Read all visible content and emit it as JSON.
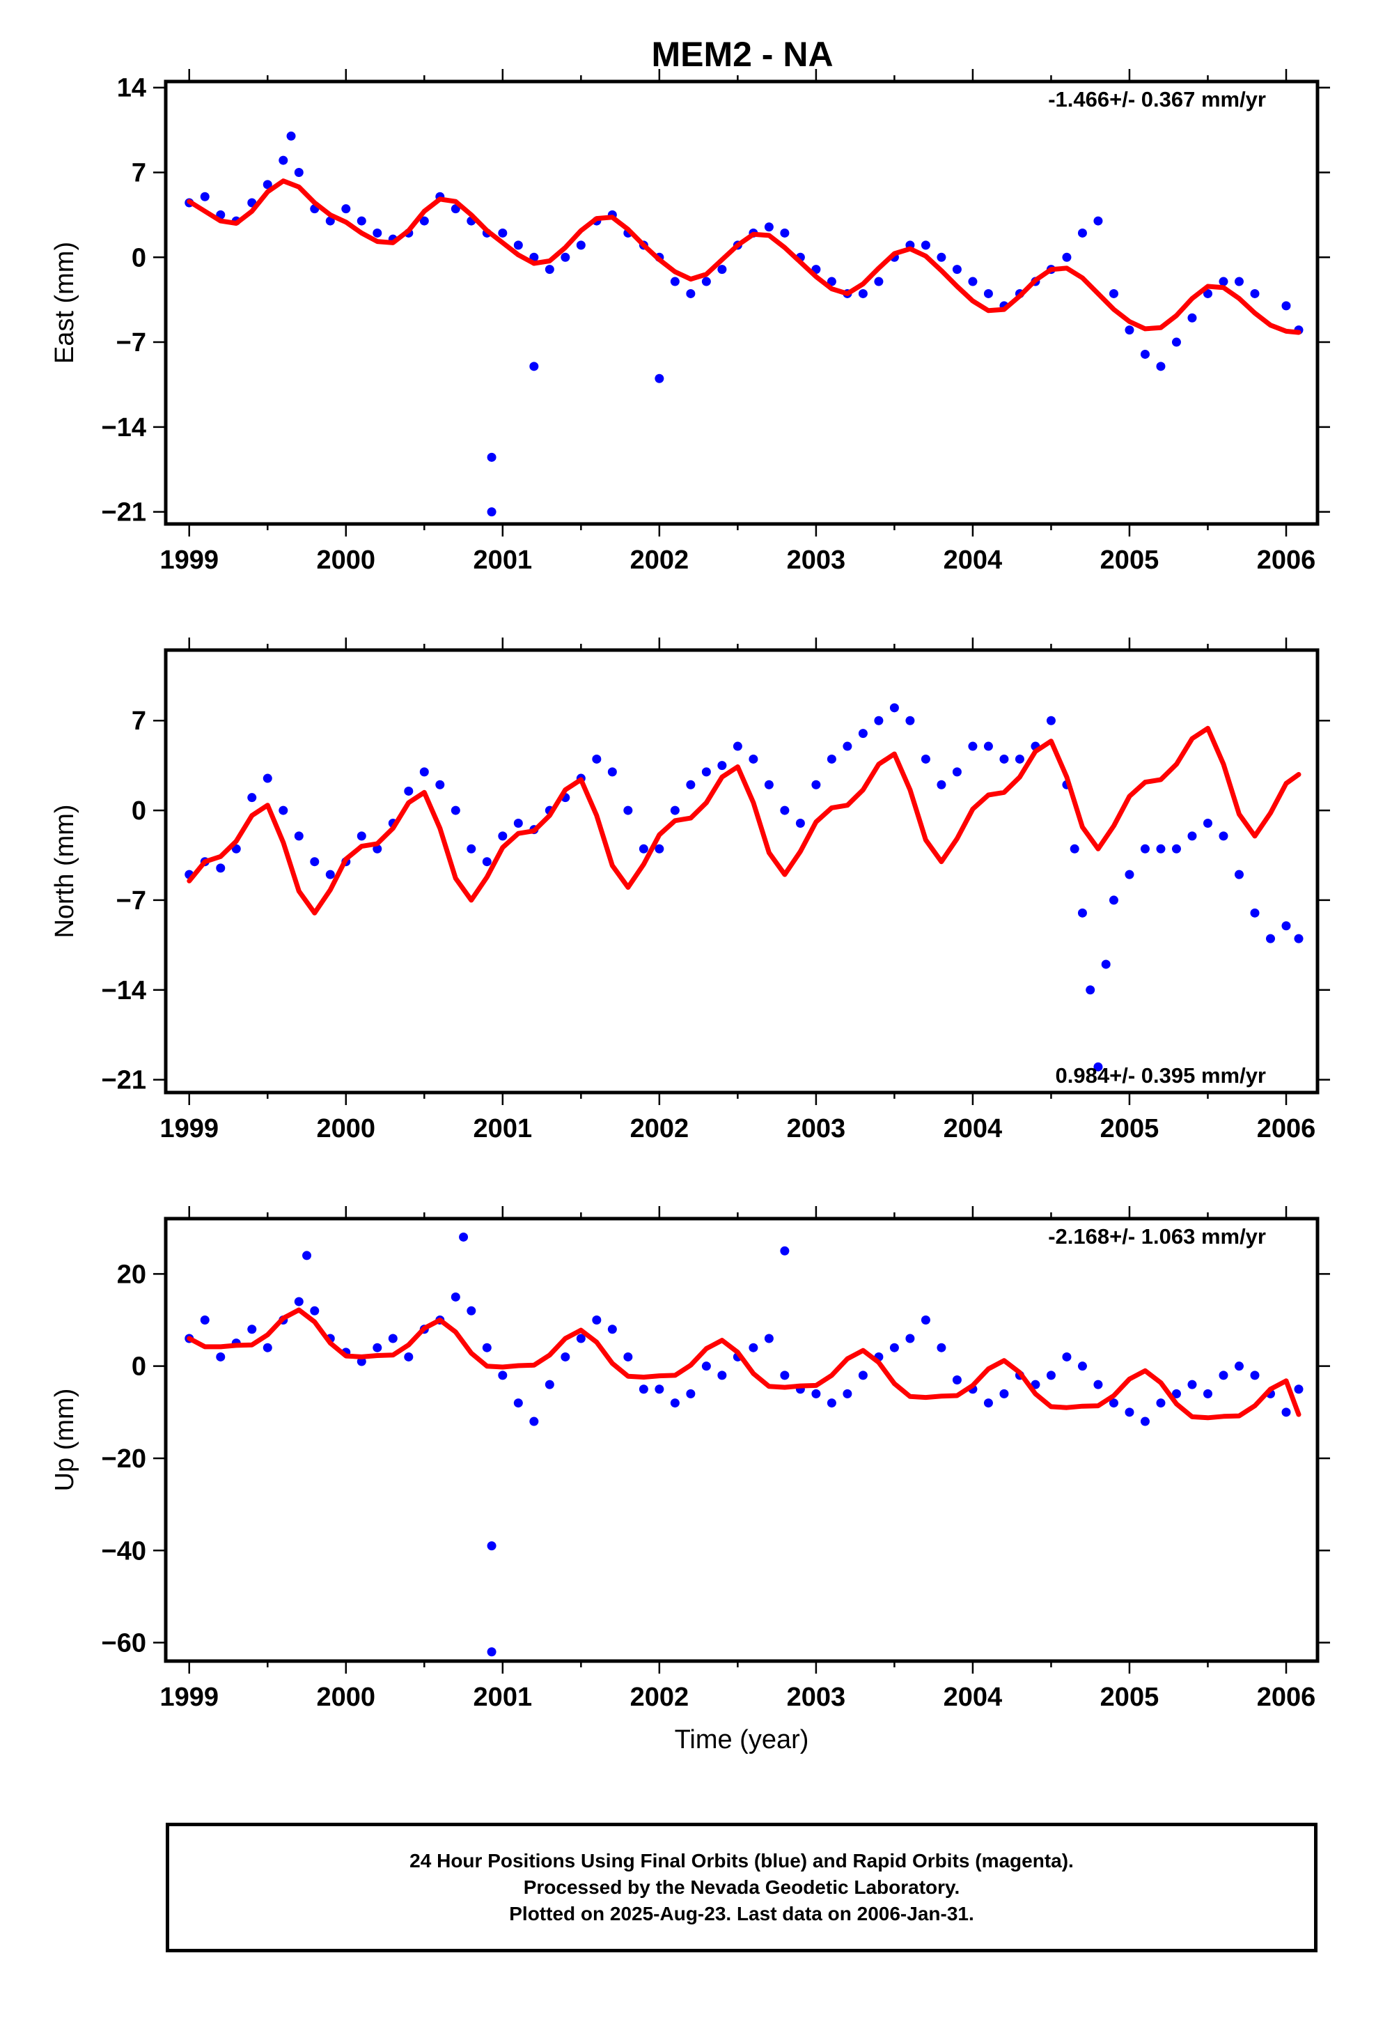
{
  "title": "MEM2 - NA",
  "colors": {
    "data_points": "#0000ff",
    "model_curve": "#ff0000",
    "axes": "#000000"
  },
  "chart_data": [
    {
      "type": "scatter",
      "panel": "east",
      "ylabel": "East (mm)",
      "xlabel": "",
      "xlim": [
        1998.85,
        2006.2
      ],
      "ylim": [
        -22,
        14.5
      ],
      "xticks": [
        1999,
        2000,
        2001,
        2002,
        2003,
        2004,
        2005,
        2006
      ],
      "xtick_labels": [
        "1999",
        "2000",
        "2001",
        "2002",
        "2003",
        "2004",
        "2005",
        "2006"
      ],
      "yticks": [
        14,
        7,
        0,
        -7,
        -14,
        -21
      ],
      "ytick_labels": [
        "14",
        "7",
        "0",
        "−7",
        "−14",
        "−21"
      ],
      "rate_label": "-1.466+/- 0.367 mm/yr",
      "rate_label_position": "top-right",
      "series": [
        {
          "kind": "points",
          "x": [
            1999.0,
            1999.1,
            1999.2,
            1999.3,
            1999.4,
            1999.5,
            1999.6,
            1999.65,
            1999.7,
            1999.8,
            1999.9,
            2000.0,
            2000.1,
            2000.2,
            2000.3,
            2000.4,
            2000.5,
            2000.6,
            2000.7,
            2000.8,
            2000.9,
            2001.0,
            2001.1,
            2001.2,
            2001.3,
            2001.4,
            2001.5,
            2001.6,
            2001.7,
            2001.8,
            2001.9,
            2002.0,
            2002.1,
            2002.2,
            2002.3,
            2002.4,
            2002.5,
            2002.6,
            2002.7,
            2002.8,
            2002.9,
            2003.0,
            2003.1,
            2003.2,
            2003.3,
            2003.4,
            2003.5,
            2003.6,
            2003.7,
            2003.8,
            2003.9,
            2004.0,
            2004.1,
            2004.2,
            2004.3,
            2004.4,
            2004.5,
            2004.6,
            2004.7,
            2004.8,
            2004.9,
            2005.0,
            2005.1,
            2005.2,
            2005.3,
            2005.4,
            2005.5,
            2005.6,
            2005.7,
            2005.8,
            2006.0,
            2006.08,
            2000.93,
            2000.93,
            2001.2,
            2002.0
          ],
          "y": [
            4.5,
            5,
            3.5,
            3,
            4.5,
            6,
            8,
            10,
            7,
            4,
            3,
            4,
            3,
            2,
            1.5,
            2,
            3,
            5,
            4,
            3,
            2,
            2,
            1,
            0,
            -1,
            0,
            1,
            3,
            3.5,
            2,
            1,
            0,
            -2,
            -3,
            -2,
            -1,
            1,
            2,
            2.5,
            2,
            0,
            -1,
            -2,
            -3,
            -3,
            -2,
            0,
            1,
            1,
            0,
            -1,
            -2,
            -3,
            -4,
            -3,
            -2,
            -1,
            0,
            2,
            3,
            -3,
            -6,
            -8,
            -9,
            -7,
            -5,
            -3,
            -2,
            -2,
            -3,
            -4,
            -6,
            -16.5,
            -21,
            -9,
            -10
          ]
        },
        {
          "kind": "model",
          "x": [
            1999.0,
            1999.1,
            1999.2,
            1999.3,
            1999.4,
            1999.5,
            1999.6,
            1999.7,
            1999.8,
            1999.9,
            2000.0,
            2000.1,
            2000.2,
            2000.3,
            2000.4,
            2000.5,
            2000.6,
            2000.7,
            2000.8,
            2000.9,
            2001.0,
            2001.1,
            2001.2,
            2001.3,
            2001.4,
            2001.5,
            2001.6,
            2001.7,
            2001.8,
            2001.9,
            2002.0,
            2002.1,
            2002.2,
            2002.3,
            2002.4,
            2002.5,
            2002.6,
            2002.7,
            2002.8,
            2002.9,
            2003.0,
            2003.1,
            2003.2,
            2003.3,
            2003.4,
            2003.5,
            2003.6,
            2003.7,
            2003.8,
            2003.9,
            2004.0,
            2004.1,
            2004.2,
            2004.3,
            2004.4,
            2004.5,
            2004.6,
            2004.7,
            2004.8,
            2004.9,
            2005.0,
            2005.1,
            2005.2,
            2005.3,
            2005.4,
            2005.5,
            2005.6,
            2005.7,
            2005.8,
            2005.9,
            2006.0,
            2006.08
          ],
          "y": [
            4.6,
            3.8,
            3.0,
            2.8,
            3.8,
            5.4,
            6.3,
            5.8,
            4.5,
            3.5,
            2.9,
            2.0,
            1.3,
            1.2,
            2.2,
            3.8,
            4.8,
            4.6,
            3.5,
            2.2,
            1.2,
            0.2,
            -0.5,
            -0.3,
            0.8,
            2.2,
            3.2,
            3.3,
            2.3,
            1.0,
            -0.2,
            -1.2,
            -1.8,
            -1.4,
            -0.2,
            1.0,
            1.9,
            1.8,
            0.8,
            -0.4,
            -1.6,
            -2.6,
            -3.0,
            -2.2,
            -0.9,
            0.3,
            0.7,
            0.1,
            -1.1,
            -2.4,
            -3.6,
            -4.4,
            -4.3,
            -3.2,
            -1.9,
            -1.0,
            -0.9,
            -1.7,
            -3.0,
            -4.3,
            -5.3,
            -5.9,
            -5.8,
            -4.8,
            -3.4,
            -2.4,
            -2.5,
            -3.4,
            -4.6,
            -5.6,
            -6.1,
            -6.2
          ]
        }
      ]
    },
    {
      "type": "scatter",
      "panel": "north",
      "ylabel": "North (mm)",
      "xlabel": "",
      "xlim": [
        1998.85,
        2006.2
      ],
      "ylim": [
        -22,
        12.5
      ],
      "xticks": [
        1999,
        2000,
        2001,
        2002,
        2003,
        2004,
        2005,
        2006
      ],
      "xtick_labels": [
        "1999",
        "2000",
        "2001",
        "2002",
        "2003",
        "2004",
        "2005",
        "2006"
      ],
      "yticks": [
        7,
        0,
        -7,
        -14,
        -21
      ],
      "ytick_labels": [
        "7",
        "0",
        "−7",
        "−14",
        "−21"
      ],
      "rate_label": "0.984+/- 0.395 mm/yr",
      "rate_label_position": "bottom-right",
      "series": [
        {
          "kind": "points",
          "x": [
            1999.0,
            1999.1,
            1999.2,
            1999.3,
            1999.4,
            1999.5,
            1999.6,
            1999.7,
            1999.8,
            1999.9,
            2000.0,
            2000.1,
            2000.2,
            2000.3,
            2000.4,
            2000.5,
            2000.6,
            2000.7,
            2000.8,
            2000.9,
            2001.0,
            2001.1,
            2001.2,
            2001.3,
            2001.4,
            2001.5,
            2001.6,
            2001.7,
            2001.8,
            2001.9,
            2002.0,
            2002.1,
            2002.2,
            2002.3,
            2002.4,
            2002.5,
            2002.6,
            2002.7,
            2002.8,
            2002.9,
            2003.0,
            2003.1,
            2003.2,
            2003.3,
            2003.4,
            2003.5,
            2003.6,
            2003.7,
            2003.8,
            2003.9,
            2004.0,
            2004.1,
            2004.2,
            2004.3,
            2004.4,
            2004.5,
            2004.6,
            2004.65,
            2004.7,
            2004.75,
            2004.8,
            2004.85,
            2004.9,
            2005.0,
            2005.1,
            2005.2,
            2005.3,
            2005.4,
            2005.5,
            2005.6,
            2005.7,
            2005.8,
            2005.9,
            2006.0,
            2006.08
          ],
          "y": [
            -5,
            -4,
            -4.5,
            -3,
            1,
            2.5,
            0,
            -2,
            -4,
            -5,
            -4,
            -2,
            -3,
            -1,
            1.5,
            3,
            2,
            0,
            -3,
            -4,
            -2,
            -1,
            -1.5,
            0,
            1,
            2.5,
            4,
            3,
            0,
            -3,
            -3,
            0,
            2,
            3,
            3.5,
            5,
            4,
            2,
            0,
            -1,
            2,
            4,
            5,
            6,
            7,
            8,
            7,
            4,
            2,
            3,
            5,
            5,
            4,
            4,
            5,
            7,
            2,
            -3,
            -8,
            -14,
            -20,
            -12,
            -7,
            -5,
            -3,
            -3,
            -3,
            -2,
            -1,
            -2,
            -5,
            -8,
            -10,
            -9,
            -10
          ]
        },
        {
          "kind": "model",
          "x": [
            1999.0,
            1999.1,
            1999.2,
            1999.3,
            1999.4,
            1999.5,
            1999.6,
            1999.7,
            1999.8,
            1999.9,
            2000.0,
            2000.1,
            2000.2,
            2000.3,
            2000.4,
            2000.5,
            2000.6,
            2000.7,
            2000.8,
            2000.9,
            2001.0,
            2001.1,
            2001.2,
            2001.3,
            2001.4,
            2001.5,
            2001.6,
            2001.7,
            2001.8,
            2001.9,
            2002.0,
            2002.1,
            2002.2,
            2002.3,
            2002.4,
            2002.5,
            2002.6,
            2002.7,
            2002.8,
            2002.9,
            2003.0,
            2003.1,
            2003.2,
            2003.3,
            2003.4,
            2003.5,
            2003.6,
            2003.7,
            2003.8,
            2003.9,
            2004.0,
            2004.1,
            2004.2,
            2004.3,
            2004.4,
            2004.5,
            2004.6,
            2004.7,
            2004.8,
            2004.9,
            2005.0,
            2005.1,
            2005.2,
            2005.3,
            2005.4,
            2005.5,
            2005.6,
            2005.7,
            2005.8,
            2005.9,
            2006.0,
            2006.08
          ],
          "y": [
            -5.5,
            -4.0,
            -3.6,
            -2.4,
            -0.4,
            0.4,
            -2.5,
            -6.3,
            -8.0,
            -6.2,
            -3.8,
            -2.8,
            -2.6,
            -1.4,
            0.6,
            1.4,
            -1.4,
            -5.3,
            -7.0,
            -5.2,
            -2.9,
            -1.8,
            -1.6,
            -0.4,
            1.6,
            2.4,
            -0.4,
            -4.3,
            -6.0,
            -4.2,
            -1.9,
            -0.8,
            -0.6,
            0.6,
            2.6,
            3.4,
            0.6,
            -3.3,
            -5.0,
            -3.2,
            -0.9,
            0.2,
            0.4,
            1.6,
            3.6,
            4.4,
            1.6,
            -2.3,
            -4.0,
            -2.2,
            0.1,
            1.2,
            1.4,
            2.6,
            4.6,
            5.4,
            2.6,
            -1.3,
            -3.0,
            -1.2,
            1.1,
            2.2,
            2.4,
            3.6,
            5.6,
            6.4,
            3.6,
            -0.3,
            -2.0,
            -0.2,
            2.1,
            2.8
          ]
        }
      ]
    },
    {
      "type": "scatter",
      "panel": "up",
      "ylabel": "Up (mm)",
      "xlabel": "Time (year)",
      "xlim": [
        1998.85,
        2006.2
      ],
      "ylim": [
        -64,
        32
      ],
      "xticks": [
        1999,
        2000,
        2001,
        2002,
        2003,
        2004,
        2005,
        2006
      ],
      "xtick_labels": [
        "1999",
        "2000",
        "2001",
        "2002",
        "2003",
        "2004",
        "2005",
        "2006"
      ],
      "yticks": [
        20,
        0,
        -20,
        -40,
        -60
      ],
      "ytick_labels": [
        "20",
        "0",
        "−20",
        "−40",
        "−60"
      ],
      "rate_label": "-2.168+/- 1.063 mm/yr",
      "rate_label_position": "top-right",
      "series": [
        {
          "kind": "points",
          "x": [
            1999.0,
            1999.1,
            1999.2,
            1999.3,
            1999.4,
            1999.5,
            1999.6,
            1999.7,
            1999.8,
            1999.9,
            2000.0,
            2000.1,
            2000.2,
            2000.3,
            2000.4,
            2000.5,
            2000.6,
            2000.7,
            2000.8,
            2000.9,
            2001.0,
            2001.1,
            2001.2,
            2001.3,
            2001.4,
            2001.5,
            2001.6,
            2001.7,
            2001.8,
            2001.9,
            2002.0,
            2002.1,
            2002.2,
            2002.3,
            2002.4,
            2002.5,
            2002.6,
            2002.7,
            2002.8,
            2002.9,
            2003.0,
            2003.1,
            2003.2,
            2003.3,
            2003.4,
            2003.5,
            2003.6,
            2003.7,
            2003.8,
            2003.9,
            2004.0,
            2004.1,
            2004.2,
            2004.3,
            2004.4,
            2004.5,
            2004.6,
            2004.7,
            2004.8,
            2004.9,
            2005.0,
            2005.1,
            2005.2,
            2005.3,
            2005.4,
            2005.5,
            2005.6,
            2005.7,
            2005.8,
            2005.9,
            2006.0,
            2006.08,
            2000.93,
            2000.93,
            1999.75,
            2000.75,
            2002.8
          ],
          "y": [
            6,
            10,
            2,
            5,
            8,
            4,
            10,
            14,
            12,
            6,
            3,
            1,
            4,
            6,
            2,
            8,
            10,
            15,
            12,
            4,
            -2,
            -8,
            -12,
            -4,
            2,
            6,
            10,
            8,
            2,
            -5,
            -5,
            -8,
            -6,
            0,
            -2,
            2,
            4,
            6,
            -2,
            -5,
            -6,
            -8,
            -6,
            -2,
            2,
            4,
            6,
            10,
            4,
            -3,
            -5,
            -8,
            -6,
            -2,
            -4,
            -2,
            2,
            0,
            -4,
            -8,
            -10,
            -12,
            -8,
            -6,
            -4,
            -6,
            -2,
            0,
            -2,
            -6,
            -10,
            -5,
            -39,
            -62,
            24,
            28,
            25
          ]
        },
        {
          "kind": "model",
          "x": [
            1999.0,
            1999.1,
            1999.2,
            1999.3,
            1999.4,
            1999.5,
            1999.6,
            1999.7,
            1999.8,
            1999.9,
            2000.0,
            2000.1,
            2000.2,
            2000.3,
            2000.4,
            2000.5,
            2000.6,
            2000.7,
            2000.8,
            2000.9,
            2001.0,
            2001.1,
            2001.2,
            2001.3,
            2001.4,
            2001.5,
            2001.6,
            2001.7,
            2001.8,
            2001.9,
            2002.0,
            2002.1,
            2002.2,
            2002.3,
            2002.4,
            2002.5,
            2002.6,
            2002.7,
            2002.8,
            2002.9,
            2003.0,
            2003.1,
            2003.2,
            2003.3,
            2003.4,
            2003.5,
            2003.6,
            2003.7,
            2003.8,
            2003.9,
            2004.0,
            2004.1,
            2004.2,
            2004.3,
            2004.4,
            2004.5,
            2004.6,
            2004.7,
            2004.8,
            2004.9,
            2005.0,
            2005.1,
            2005.2,
            2005.3,
            2005.4,
            2005.5,
            2005.6,
            2005.7,
            2005.8,
            2005.9,
            2006.0,
            2006.08
          ],
          "y": [
            6.0,
            4.2,
            4.2,
            4.5,
            4.6,
            6.8,
            10.4,
            12.2,
            9.6,
            5.0,
            2.2,
            2.0,
            2.3,
            2.4,
            4.6,
            8.2,
            10.0,
            7.4,
            2.8,
            0.0,
            -0.2,
            0.1,
            0.2,
            2.4,
            6.0,
            7.8,
            5.2,
            0.6,
            -2.2,
            -2.4,
            -2.1,
            -2.0,
            0.2,
            3.8,
            5.6,
            3.0,
            -1.6,
            -4.4,
            -4.6,
            -4.3,
            -4.2,
            -2.0,
            1.6,
            3.4,
            0.8,
            -3.8,
            -6.6,
            -6.8,
            -6.5,
            -6.4,
            -4.2,
            -0.6,
            1.2,
            -1.4,
            -6.0,
            -8.8,
            -9.0,
            -8.7,
            -8.6,
            -6.4,
            -2.8,
            -1.0,
            -3.6,
            -8.2,
            -11.0,
            -11.2,
            -10.9,
            -10.8,
            -8.6,
            -5.0,
            -3.2,
            -10.5
          ]
        }
      ]
    }
  ],
  "footer": {
    "line1": "24 Hour Positions Using Final Orbits (blue) and Rapid Orbits (magenta).",
    "line2": "Processed by the Nevada Geodetic Laboratory.",
    "line3": "Plotted on 2025-Aug-23. Last data on 2006-Jan-31."
  }
}
